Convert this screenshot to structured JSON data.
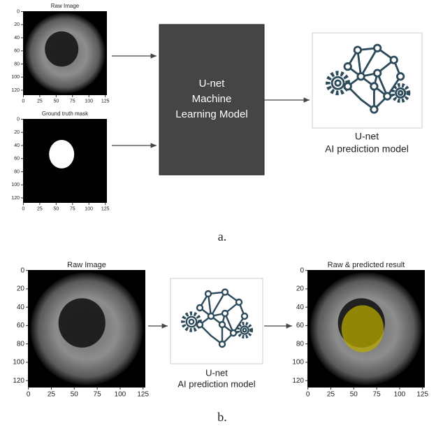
{
  "figure_a": {
    "raw_image": {
      "title": "Raw Image",
      "xticks": [
        0,
        25,
        50,
        75,
        100,
        125
      ],
      "yticks": [
        0,
        20,
        40,
        60,
        80,
        100,
        120
      ]
    },
    "mask": {
      "title": "Ground truth mask",
      "xticks": [
        0,
        25,
        50,
        75,
        100,
        125
      ],
      "yticks": [
        0,
        20,
        40,
        60,
        80,
        100,
        120
      ]
    },
    "model_box": {
      "lines": [
        "U-net",
        "Machine",
        "Learning Model"
      ]
    },
    "output": {
      "lines": [
        "U-net",
        "AI prediction model"
      ]
    },
    "caption": "a."
  },
  "figure_b": {
    "raw_image": {
      "title": "Raw Image",
      "xticks": [
        0,
        25,
        50,
        75,
        100,
        125
      ],
      "yticks": [
        0,
        20,
        40,
        60,
        80,
        100,
        120
      ]
    },
    "model": {
      "lines": [
        "U-net",
        "AI prediction model"
      ]
    },
    "result": {
      "title": "Raw & predicted result",
      "xticks": [
        0,
        25,
        50,
        75,
        100,
        125
      ],
      "yticks": [
        0,
        20,
        40,
        60,
        80,
        100,
        120
      ]
    },
    "caption": "b."
  }
}
